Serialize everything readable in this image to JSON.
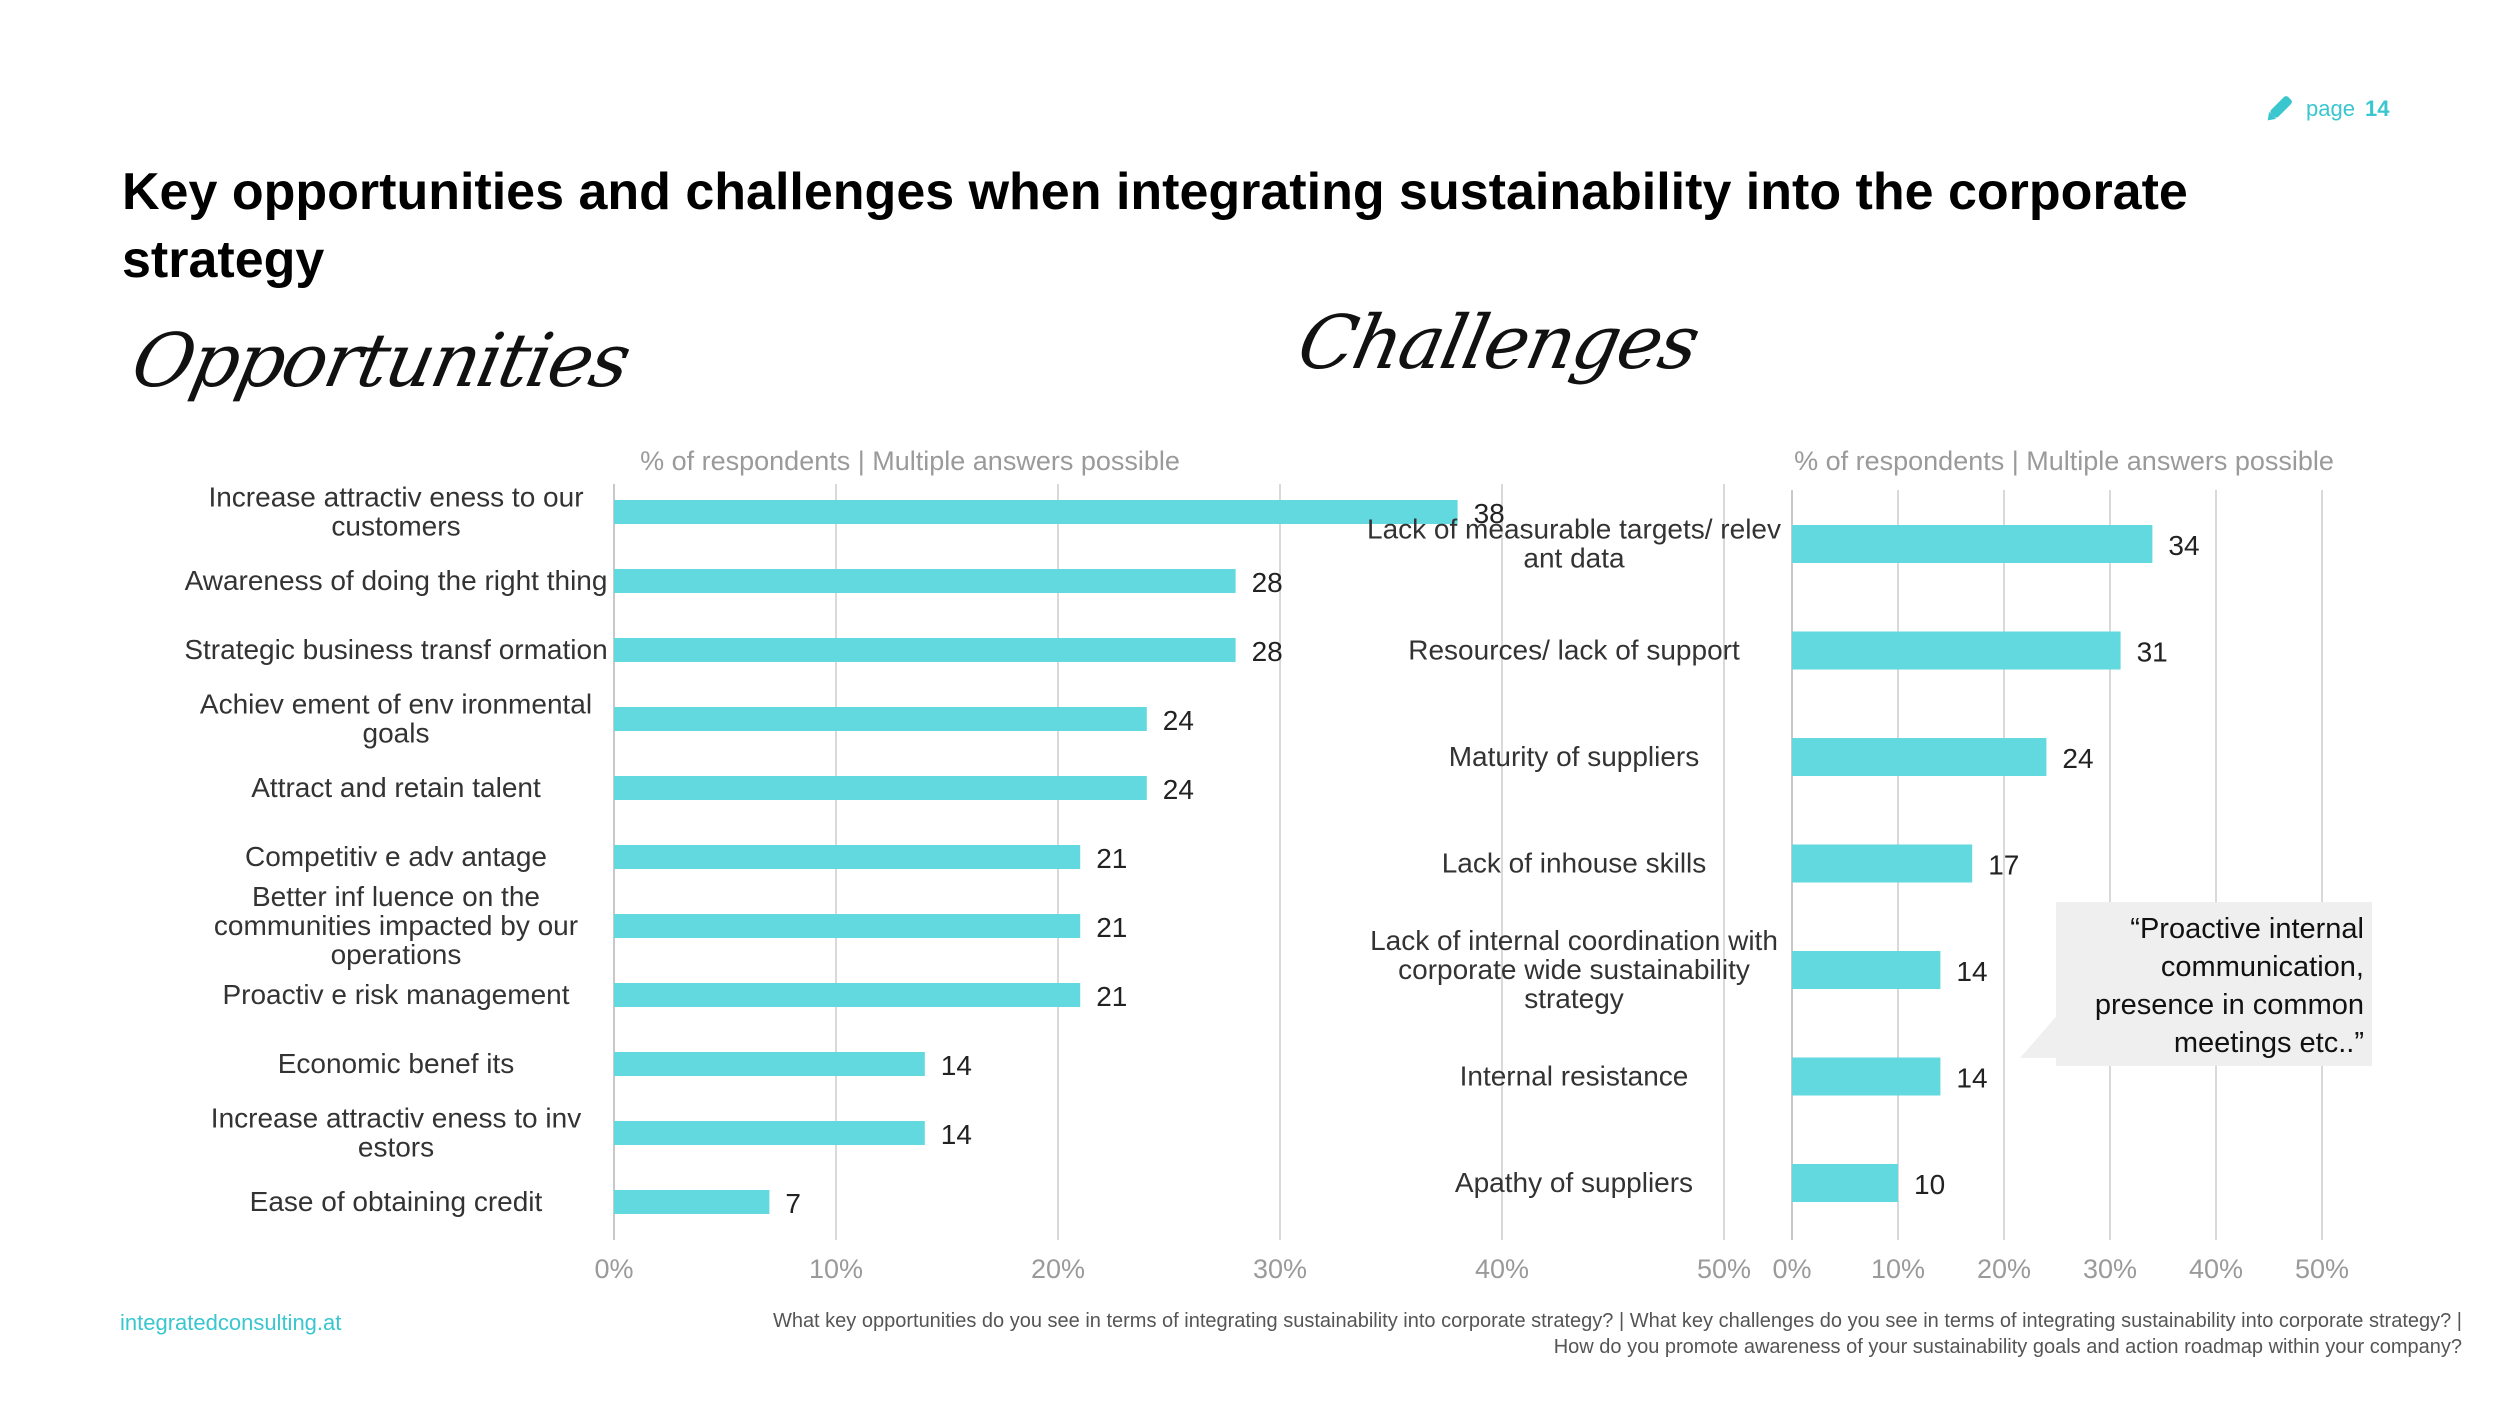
{
  "page": {
    "label": "page",
    "number": "14",
    "icon": "pencil-icon"
  },
  "title": "Key opportunities and challenges when integrating sustainability into the corporate strategy",
  "opportunities": {
    "heading": "Opportunities"
  },
  "challenges": {
    "heading": "Challenges"
  },
  "quote": "“Proactive internal communication, presence in common meetings etc..”",
  "footer": {
    "site": "integratedconsulting.at",
    "question_line1": "What key opportunities do you see in terms of integrating sustainability into corporate strategy? | What key challenges do you see in terms of integrating sustainability into corporate strategy? |",
    "question_line2": "How do you promote awareness of your sustainability goals and action roadmap within your company?"
  },
  "colors": {
    "bar": "#62d8df",
    "accent": "#39c6cf",
    "grid": "#d9d9d9",
    "axis_text": "#9a9a9a"
  },
  "chart_data": [
    {
      "type": "bar",
      "orientation": "horizontal",
      "subtitle": "% of respondents | Multiple answers possible",
      "categories": [
        "Increase attractiv eness to our customers",
        "Awareness of doing the right thing",
        "Strategic business transf ormation",
        "Achiev ement of env ironmental goals",
        "Attract and retain talent",
        "Competitiv e adv antage",
        "Better inf luence on the communities impacted by our operations",
        "Proactiv e risk management",
        "Economic benef its",
        "Increase attractiv eness to inv estors",
        "Ease of obtaining credit"
      ],
      "values": [
        38,
        28,
        28,
        24,
        24,
        21,
        21,
        21,
        14,
        14,
        7
      ],
      "xticks": [
        "0%",
        "10%",
        "20%",
        "30%",
        "40%",
        "50%"
      ],
      "xlim": [
        0,
        50
      ],
      "grid": true
    },
    {
      "type": "bar",
      "orientation": "horizontal",
      "subtitle": "% of respondents | Multiple answers possible",
      "categories": [
        "Lack of measurable targets/ relev ant data",
        "Resources/ lack of support",
        "Maturity of suppliers",
        "Lack of inhouse skills",
        "Lack of internal coordination with corporate wide sustainability strategy",
        "Internal resistance",
        "Apathy of suppliers"
      ],
      "values": [
        34,
        31,
        24,
        17,
        14,
        14,
        10
      ],
      "xticks": [
        "0%",
        "10%",
        "20%",
        "30%",
        "40%",
        "50%"
      ],
      "xlim": [
        0,
        50
      ],
      "grid": true
    }
  ]
}
